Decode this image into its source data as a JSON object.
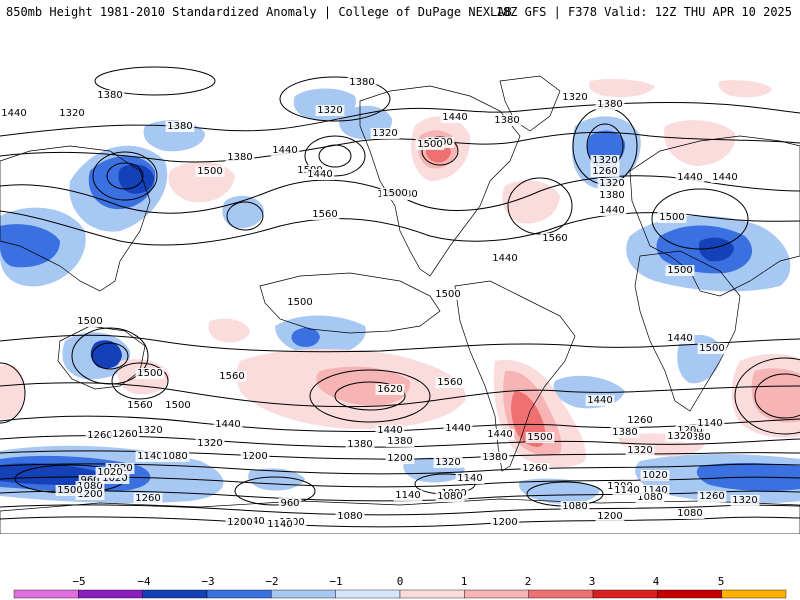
{
  "header": {
    "left_title": "850mb Height 1981-2010 Standardized Anomaly | College of DuPage NEXLAB",
    "right_title": "18Z GFS | F378 Valid: 12Z THU APR 10 2025"
  },
  "colors": {
    "neg5": "#e070e0",
    "neg4": "#8a1ec0",
    "neg3": "#1440b8",
    "neg2": "#3a70e0",
    "neg1": "#a8c8f4",
    "neg05": "#d6e6fa",
    "pos05": "#fbdcdc",
    "pos1": "#f6b4b4",
    "pos2": "#ee7070",
    "pos3": "#d82020",
    "pos4": "#c40000",
    "pos5": "#ffb000",
    "contour": "#000000",
    "coast": "#000000"
  },
  "colorbar": {
    "ticks": [
      "−5",
      "−4",
      "−3",
      "−2",
      "−1",
      "0",
      "1",
      "2",
      "3",
      "4",
      "5"
    ]
  },
  "contour_labels": [
    "1440",
    "1380",
    "1320",
    "1380",
    "1320",
    "1320",
    "1380",
    "1440",
    "1380",
    "1320",
    "1380",
    "1440",
    "1500",
    "1440",
    "1380",
    "1320",
    "1260",
    "1320",
    "1380",
    "1440",
    "1500",
    "1380",
    "1380",
    "1500",
    "1500",
    "1500",
    "1440",
    "1440",
    "1560",
    "1560",
    "1500",
    "1500",
    "1500",
    "1500",
    "1500",
    "1500",
    "1560",
    "1620",
    "1560",
    "1560",
    "1500",
    "1440",
    "1440",
    "1440",
    "1380",
    "1320",
    "1260",
    "1380",
    "1320",
    "1260",
    "1200",
    "1200",
    "1140",
    "1080",
    "1020",
    "960",
    "1080",
    "1020",
    "1200",
    "1260",
    "960",
    "1140",
    "1200",
    "1140",
    "1080",
    "1140",
    "1080",
    "1200",
    "1260",
    "1320",
    "1380",
    "1440",
    "1500",
    "1440",
    "1380",
    "1320",
    "1260",
    "1200",
    "1140",
    "1080",
    "1020",
    "1140",
    "1080",
    "1260",
    "1320",
    "1380",
    "1320",
    "1260",
    "1200",
    "1140",
    "1080",
    "1200",
    "1200",
    "1140",
    "1080",
    "1020",
    "1500",
    "1440",
    "1440",
    "1500"
  ]
}
